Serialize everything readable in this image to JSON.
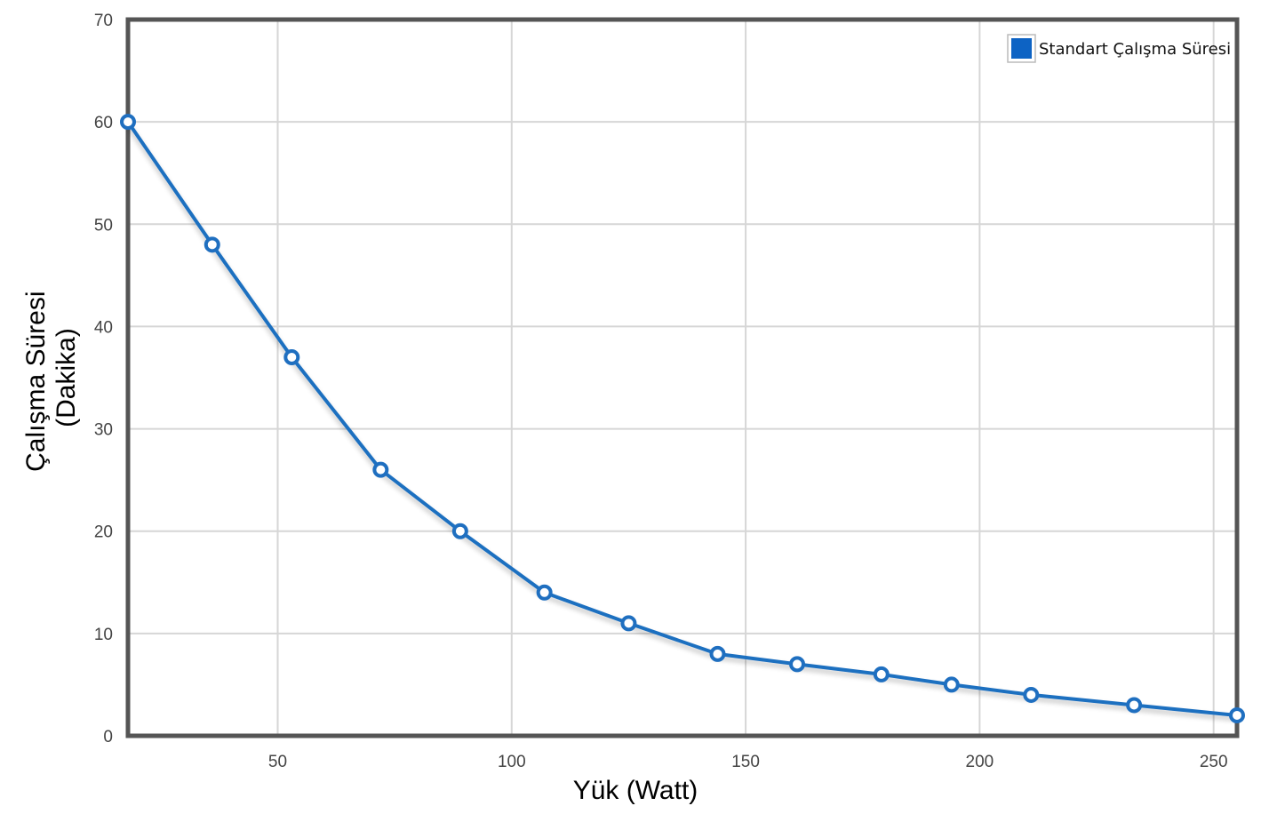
{
  "chart_data": {
    "type": "line",
    "xlabel": "Yük (Watt)",
    "ylabel_lines": [
      "Çalışma Süresi",
      "(Dakika)"
    ],
    "xlim": [
      18,
      255
    ],
    "ylim": [
      0,
      70
    ],
    "x_ticks": [
      50,
      100,
      150,
      200,
      250
    ],
    "y_ticks": [
      0,
      10,
      20,
      30,
      40,
      50,
      60,
      70
    ],
    "grid": true,
    "legend_position": "top-right",
    "series": [
      {
        "name": "Standart Çalışma Süresi",
        "color": "#1f6fc0",
        "x": [
          18,
          36,
          53,
          72,
          89,
          107,
          125,
          144,
          161,
          179,
          194,
          211,
          233,
          255
        ],
        "y": [
          60,
          48,
          37,
          26,
          20,
          14,
          11,
          8,
          7,
          6,
          5,
          4,
          3,
          2
        ]
      }
    ]
  }
}
